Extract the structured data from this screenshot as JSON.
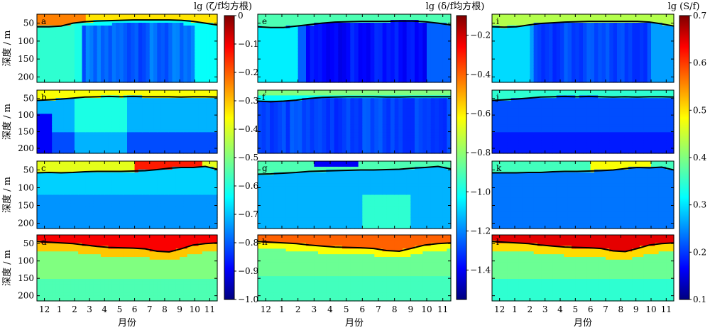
{
  "chart_data": {
    "type": "heatmap",
    "xlabel": "月份",
    "ylabel": "深度 / m",
    "x_ticks": [
      "12",
      "1",
      "2",
      "3",
      "4",
      "5",
      "6",
      "7",
      "8",
      "9",
      "10",
      "11"
    ],
    "y_ticks": [
      "50",
      "100",
      "150",
      "200"
    ],
    "y_range": [
      25,
      215
    ],
    "colormap": "jet",
    "grid": false,
    "columns": [
      {
        "colorbar_label": "lg (ζ/f均方根)",
        "colorbar_ticks": [
          "0",
          "−0.1",
          "−0.2",
          "−0.3",
          "−0.4",
          "−0.5",
          "−0.6",
          "−0.7",
          "−0.8",
          "−0.9",
          "−1.0"
        ],
        "colorbar_range": [
          -1.0,
          0
        ],
        "panels": [
          {
            "letter": "a",
            "mld": [
              60,
              60,
              58,
              50,
              46,
              44,
              43,
              42,
              41,
              41,
              41,
              41,
              42,
              45,
              50,
              55
            ]
          },
          {
            "letter": "b",
            "mld": [
              56,
              54,
              52,
              49,
              46,
              45,
              44,
              45,
              44,
              45,
              45,
              45,
              46,
              45,
              45,
              46
            ]
          },
          {
            "letter": "c",
            "mld": [
              58,
              57,
              58,
              57,
              55,
              54,
              54,
              54,
              53,
              52,
              49,
              45,
              43,
              43,
              40,
              48
            ]
          },
          {
            "letter": "d",
            "mld": [
              44,
              46,
              48,
              50,
              54,
              58,
              61,
              62,
              63,
              65,
              72,
              74,
              65,
              54,
              50,
              48
            ]
          }
        ]
      },
      {
        "colorbar_label": "lg (δ/f均方根)",
        "colorbar_ticks": [
          "−0.2",
          "−0.4",
          "−0.6",
          "−0.8",
          "−1.0",
          "−1.2",
          "−1.4"
        ],
        "colorbar_range": [
          -1.55,
          -0.1
        ],
        "panels": [
          {
            "letter": "e",
            "mld": [
              60,
              62,
              62,
              58,
              54,
              50,
              47,
              46,
              45,
              45,
              45,
              44,
              44,
              46,
              50,
              55
            ]
          },
          {
            "letter": "f",
            "mld": [
              58,
              60,
              58,
              55,
              50,
              47,
              46,
              45,
              45,
              45,
              46,
              46,
              45,
              45,
              45,
              45
            ]
          },
          {
            "letter": "g",
            "mld": [
              62,
              61,
              59,
              57,
              54,
              53,
              52,
              51,
              50,
              50,
              49,
              48,
              45,
              43,
              40,
              47
            ]
          },
          {
            "letter": "h",
            "mld": [
              44,
              46,
              48,
              50,
              54,
              57,
              60,
              61,
              62,
              64,
              70,
              72,
              63,
              54,
              50,
              48
            ]
          }
        ]
      },
      {
        "colorbar_label": "lg (S/f)",
        "colorbar_ticks": [
          "0.7",
          "0.6",
          "0.5",
          "0.4",
          "0.3",
          "0.2",
          "0.1"
        ],
        "colorbar_range": [
          0.1,
          0.7
        ],
        "panels": [
          {
            "letter": "i",
            "mld": [
              60,
              61,
              60,
              55,
              51,
              49,
              47,
              46,
              45,
              45,
              45,
              45,
              45,
              47,
              52,
              58
            ]
          },
          {
            "letter": "j",
            "mld": [
              56,
              54,
              52,
              49,
              46,
              45,
              44,
              45,
              44,
              45,
              46,
              45,
              46,
              45,
              45,
              46
            ]
          },
          {
            "letter": "k",
            "mld": [
              58,
              58,
              58,
              57,
              57,
              55,
              54,
              54,
              53,
              52,
              50,
              46,
              43,
              44,
              42,
              50
            ]
          },
          {
            "letter": "l",
            "mld": [
              44,
              46,
              48,
              50,
              54,
              57,
              60,
              61,
              62,
              64,
              71,
              73,
              64,
              54,
              50,
              48
            ]
          }
        ]
      }
    ]
  }
}
